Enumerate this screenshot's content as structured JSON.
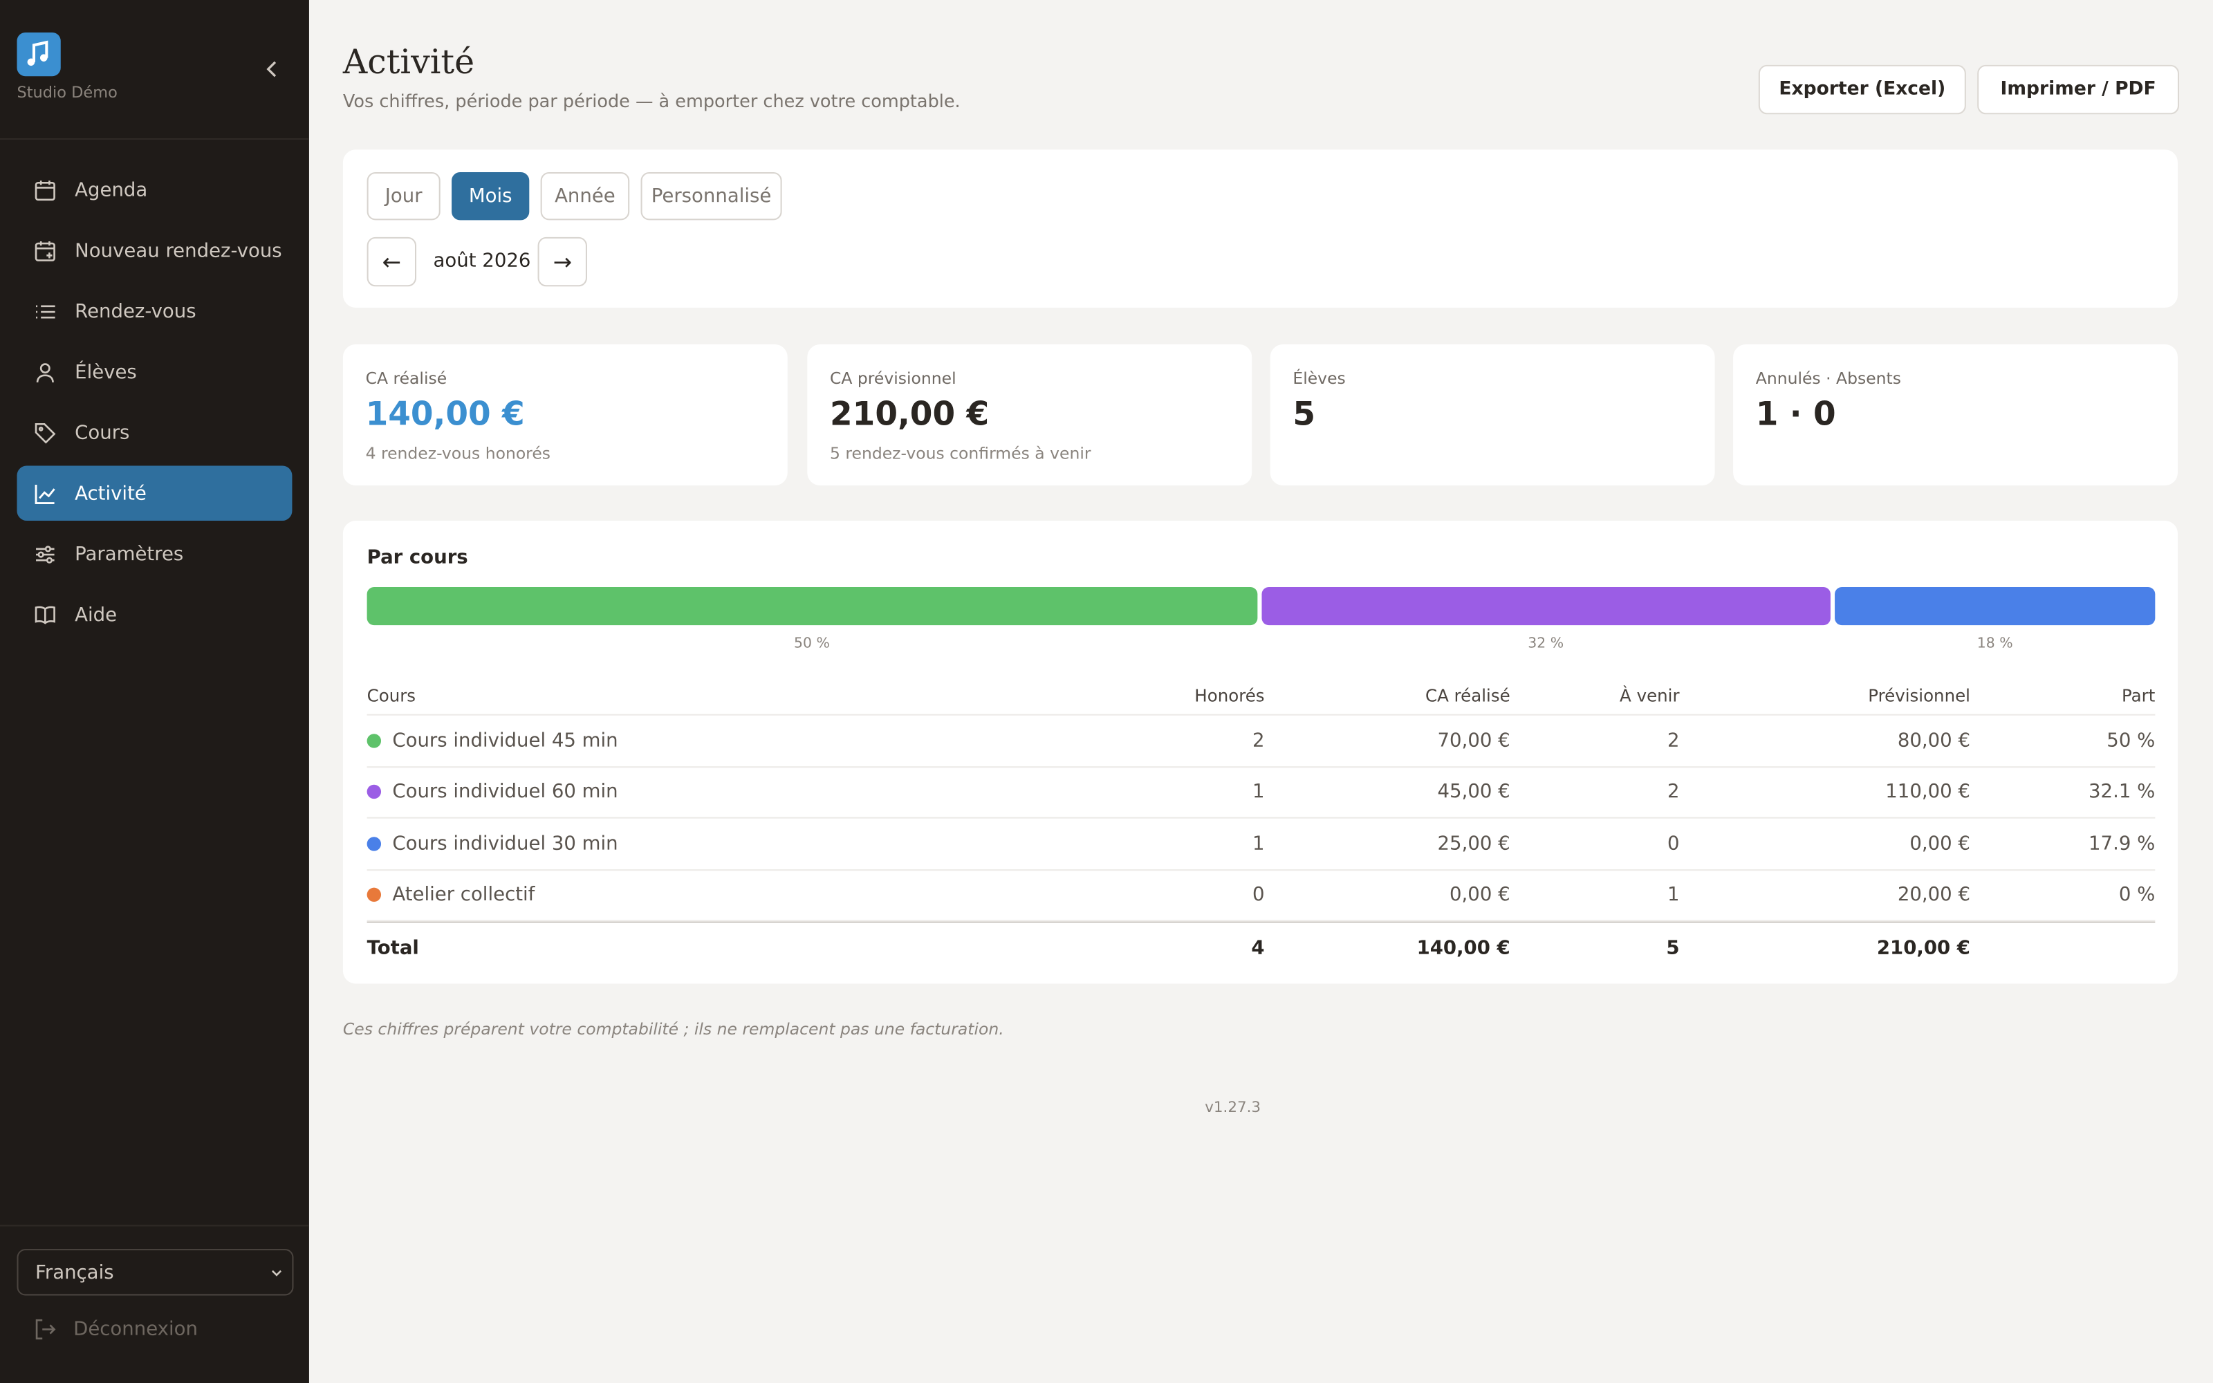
{
  "sidebar": {
    "brand": "Studio Démo",
    "nav": [
      "Agenda",
      "Nouveau rendez-vous",
      "Rendez-vous",
      "Élèves",
      "Cours",
      "Activité",
      "Paramètres",
      "Aide"
    ],
    "language": "Français",
    "logout": "Déconnexion"
  },
  "header": {
    "title": "Activité",
    "subtitle": "Vos chiffres, période par période — à emporter chez votre comptable.",
    "buttons": [
      "Exporter (Excel)",
      "Imprimer / PDF"
    ]
  },
  "period": {
    "tabs": [
      "Jour",
      "Mois",
      "Année",
      "Personnalisé"
    ],
    "prev": "←",
    "current": "août 2026",
    "next": "→"
  },
  "kpis": [
    {
      "label": "CA réalisé",
      "value": "140,00 €",
      "note": "4 rendez-vous honorés"
    },
    {
      "label": "CA prévisionnel",
      "value": "210,00 €",
      "note": "5 rendez-vous confirmés à venir"
    },
    {
      "label": "Élèves",
      "value": "5"
    },
    {
      "label": "Annulés · Absents",
      "value": "1 · 0"
    }
  ],
  "breakdown": {
    "title": "Par cours",
    "bar": [
      {
        "value": 50,
        "label": "50 %",
        "color": "#5ec26a"
      },
      {
        "value": 32,
        "label": "32 %",
        "color": "#9b5de5"
      },
      {
        "value": 18,
        "label": "18 %",
        "color": "#4a80e8"
      }
    ],
    "table": {
      "header": [
        "Cours",
        "Honorés",
        "CA réalisé",
        "À venir",
        "Prévisionnel",
        "Part"
      ],
      "rows": [
        {
          "color": "#5ec26a",
          "cells": [
            "Cours individuel 45 min",
            "2",
            "70,00 €",
            "2",
            "80,00 €",
            "50 %"
          ]
        },
        {
          "color": "#9b5de5",
          "cells": [
            "Cours individuel 60 min",
            "1",
            "45,00 €",
            "2",
            "110,00 €",
            "32.1 %"
          ]
        },
        {
          "color": "#4a80e8",
          "cells": [
            "Cours individuel 30 min",
            "1",
            "25,00 €",
            "0",
            "0,00 €",
            "17.9 %"
          ]
        },
        {
          "color": "#e8793a",
          "cells": [
            "Atelier collectif",
            "0",
            "0,00 €",
            "1",
            "20,00 €",
            "0 %"
          ]
        }
      ],
      "total": [
        "Total",
        "4",
        "140,00 €",
        "5",
        "210,00 €"
      ]
    }
  },
  "footnote": "Ces chiffres préparent votre comptabilité ; ils ne remplacent pas une facturation.",
  "version": "v1.27.3"
}
